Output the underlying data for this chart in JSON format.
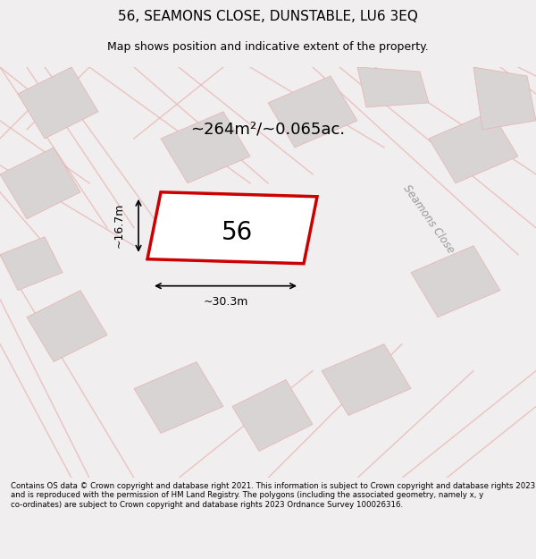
{
  "title": "56, SEAMONS CLOSE, DUNSTABLE, LU6 3EQ",
  "subtitle": "Map shows position and indicative extent of the property.",
  "area_text": "~264m²/~0.065ac.",
  "plot_number": "56",
  "width_label": "~30.3m",
  "height_label": "~16.7m",
  "footer_text": "Contains OS data © Crown copyright and database right 2021. This information is subject to Crown copyright and database rights 2023 and is reproduced with the permission of HM Land Registry. The polygons (including the associated geometry, namely x, y co-ordinates) are subject to Crown copyright and database rights 2023 Ordnance Survey 100026316.",
  "bg_color": "#f0eeee",
  "map_bg_color": "#eeecec",
  "plot_outline_color": "#cc0000",
  "road_label": "Seamons Close",
  "road_label_color": "#999999",
  "road_line_color": "#e8b0b0",
  "hatching_color": "#d4a0a0"
}
